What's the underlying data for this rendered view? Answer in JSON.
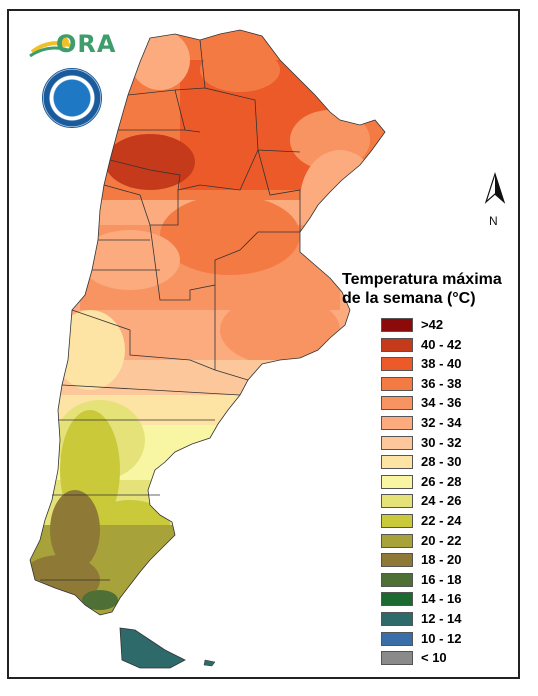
{
  "logo": {
    "text": "ORA",
    "icon": "ora-sun-logo"
  },
  "seal": {
    "icon": "smn-argentina-seal"
  },
  "north": {
    "label": "N",
    "icon": "north-arrow-icon"
  },
  "legend": {
    "title_line1": "Temperatura máxima",
    "title_line2": "de la semana (°C)",
    "items": [
      {
        "label": ">42",
        "color": "#8b0a0a"
      },
      {
        "label": "40 - 42",
        "color": "#c43a1a"
      },
      {
        "label": "38 - 40",
        "color": "#ec5a2a"
      },
      {
        "label": "36 - 38",
        "color": "#f47a44"
      },
      {
        "label": "34 - 36",
        "color": "#f89462"
      },
      {
        "label": "32 - 34",
        "color": "#fbab7e"
      },
      {
        "label": "30 - 32",
        "color": "#fcc79a"
      },
      {
        "label": "28 - 30",
        "color": "#fde3a4"
      },
      {
        "label": "26 - 28",
        "color": "#f8f6a2"
      },
      {
        "label": "24 - 26",
        "color": "#e5e27a"
      },
      {
        "label": "22 - 24",
        "color": "#c9c93a"
      },
      {
        "label": "20 - 22",
        "color": "#a7a23a"
      },
      {
        "label": "18 - 20",
        "color": "#8e7a36"
      },
      {
        "label": "16 - 18",
        "color": "#4e7036"
      },
      {
        "label": "14 - 16",
        "color": "#1c6a30"
      },
      {
        "label": "12 - 14",
        "color": "#2f6a6a"
      },
      {
        "label": "10 - 12",
        "color": "#3a6ea8"
      },
      {
        "label": "< 10",
        "color": "#8a8a8a"
      }
    ]
  }
}
